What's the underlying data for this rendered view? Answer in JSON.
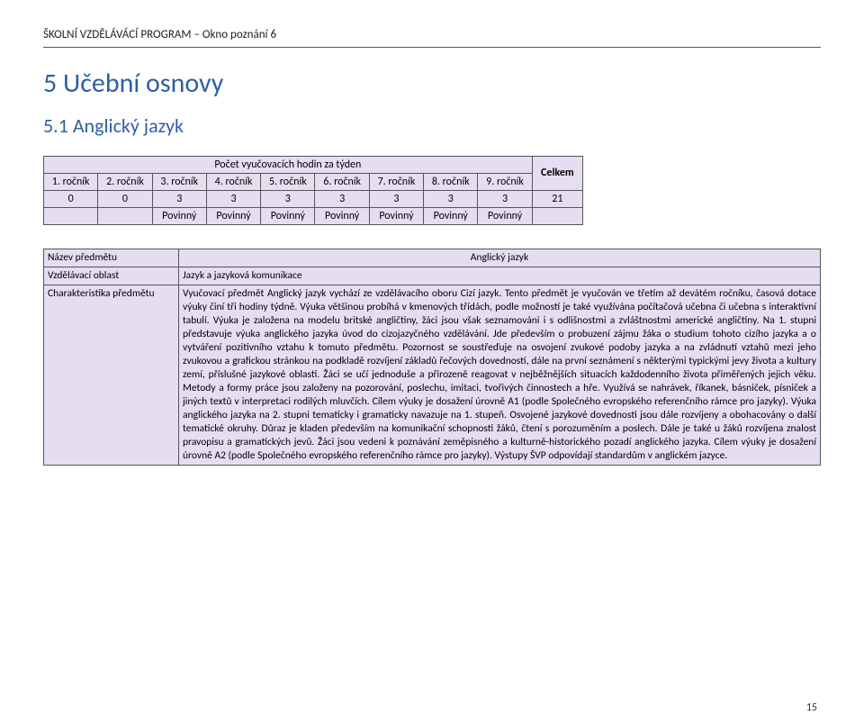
{
  "doc_header": "ŠKOLNÍ VZDĚLÁVÁCÍ PROGRAM – Okno poznání 6",
  "section": {
    "h1": "5 Učební osnovy",
    "h2": "5.1 Anglický jazyk"
  },
  "hours_table": {
    "title": "Počet vyučovacích hodin za týden",
    "total_label": "Celkem",
    "grades": [
      "1. ročník",
      "2. ročník",
      "3. ročník",
      "4. ročník",
      "5. ročník",
      "6. ročník",
      "7. ročník",
      "8. ročník",
      "9. ročník"
    ],
    "values": [
      "0",
      "0",
      "3",
      "3",
      "3",
      "3",
      "3",
      "3",
      "3"
    ],
    "total_value": "21",
    "mandatory": [
      "",
      "",
      "Povinný",
      "Povinný",
      "Povinný",
      "Povinný",
      "Povinný",
      "Povinný",
      "Povinný"
    ]
  },
  "char_table": {
    "rows": [
      {
        "label": "Název předmětu",
        "value": "Anglický jazyk",
        "center": true
      },
      {
        "label": "Vzdělávací oblast",
        "value": "Jazyk a jazyková komunikace",
        "center": false
      },
      {
        "label": "Charakteristika předmětu",
        "value": "Vyučovací předmět Anglický jazyk vychází ze vzdělávacího oboru Cizí jazyk. Tento předmět je vyučován ve třetím až devátém ročníku, časová dotace výuky činí tři hodiny týdně. Výuka většinou probíhá v kmenových třídách, podle možností je také využívána počítačová učebna či učebna s interaktivní tabulí. Výuka je založena na modelu britské angličtiny, žáci jsou však seznamováni i s odlišnostmi a zvláštnostmi americké angličtiny. Na 1. stupni představuje výuka anglického jazyka úvod do cizojazyčného vzdělávání. Jde především o probuzení zájmu žáka o studium tohoto cizího jazyka a o vytváření pozitivního vztahu k tomuto předmětu. Pozornost se soustřeďuje na osvojení zvukové podoby jazyka a na zvládnutí vztahů mezi jeho zvukovou a grafickou stránkou na podkladě rozvíjení základů řečových dovedností, dále na první seznámení s některými typickými jevy života a kultury zemí, příslušné jazykové oblasti. Žáci se učí jednoduše a přirozeně reagovat v nejběžnějších situacích každodenního života přiměřených jejich věku. Metody a formy práce jsou založeny na pozorování, poslechu, imitaci, tvořivých činnostech a hře. Využívá se nahrávek, říkanek, básniček, písniček a jiných textů v interpretaci rodilých mluvčích. Cílem výuky je dosažení úrovně A1 (podle Společného evropského referenčního rámce pro jazyky). Výuka anglického jazyka na 2. stupni tematicky i gramaticky navazuje na 1. stupeň. Osvojené jazykové dovednosti jsou dále rozvíjeny a obohacovány o další tematické okruhy. Důraz je kladen především na komunikační schopnosti žáků, čtení s porozuměním a poslech. Dále je také u žáků rozvíjena znalost pravopisu a gramatických jevů. Žáci jsou vedeni k poznávání zeměpisného a kulturně-historického pozadí anglického jazyka. Cílem výuky je dosažení úrovně A2 (podle Společného evropského referenčního rámce pro jazyky). Výstupy ŠVP odpovídají standardům v anglickém jazyce.",
        "center": false
      }
    ]
  },
  "page_number": "15",
  "colors": {
    "heading": "#2e5fa3",
    "cell_bg": "#e6ddf1",
    "border": "#555555",
    "page_bg": "#ffffff"
  }
}
